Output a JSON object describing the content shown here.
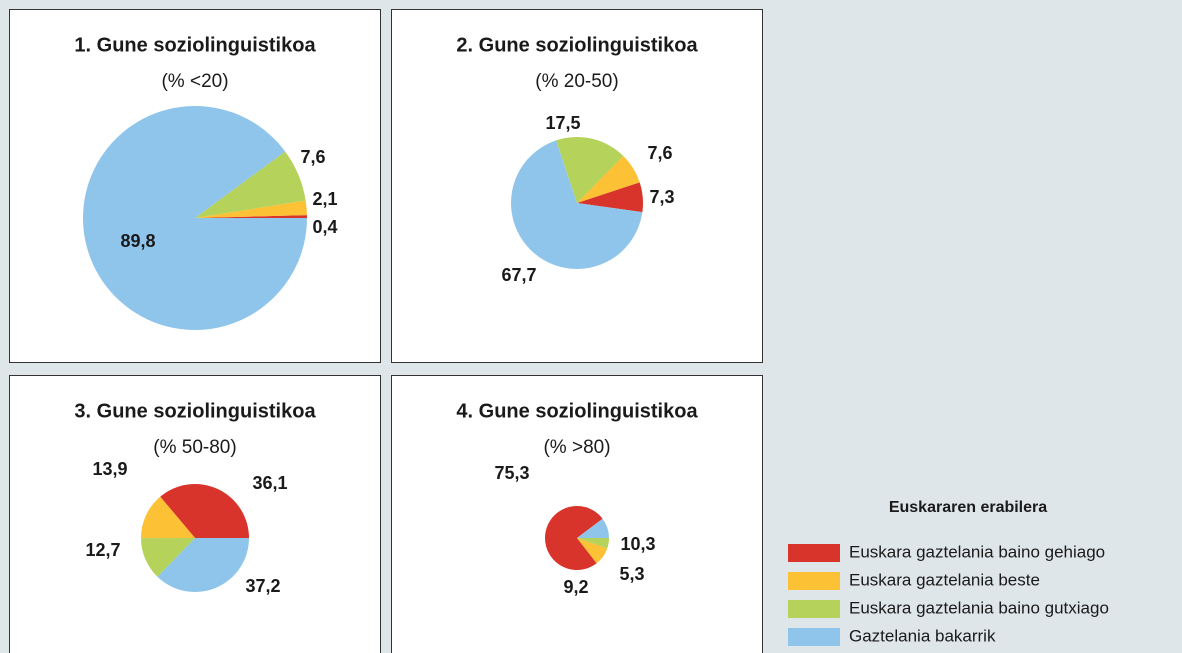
{
  "chart_data": [
    {
      "type": "pie",
      "title": "1. Gune soziolinguistikoa",
      "subtitle": "(% <20)",
      "values": [
        0.4,
        2.1,
        7.6,
        89.8
      ],
      "value_labels": [
        "0,4",
        "2,1",
        "7,6",
        "89,8"
      ]
    },
    {
      "type": "pie",
      "title": "2. Gune soziolinguistikoa",
      "subtitle": "(% 20-50)",
      "values": [
        7.3,
        7.6,
        17.5,
        67.7
      ],
      "value_labels": [
        "7,3",
        "7,6",
        "17,5",
        "67,7"
      ]
    },
    {
      "type": "pie",
      "title": "3. Gune soziolinguistikoa",
      "subtitle": "(% 50-80)",
      "values": [
        36.1,
        13.9,
        12.7,
        37.2
      ],
      "value_labels": [
        "36,1",
        "13,9",
        "12,7",
        "37,2"
      ]
    },
    {
      "type": "pie",
      "title": "4. Gune soziolinguistikoa",
      "subtitle": "(% >80)",
      "values": [
        75.3,
        9.2,
        5.3,
        10.3
      ],
      "value_labels": [
        "75,3",
        "9,2",
        "5,3",
        "10,3"
      ]
    }
  ],
  "legend": {
    "title": "Euskararen erabilera",
    "categories": [
      "Euskara gaztelania baino gehiago",
      "Euskara gaztelania beste",
      "Euskara gaztelania baino gutxiago",
      "Gaztelania bakarrik"
    ],
    "colors": [
      "#d9342b",
      "#fcc135",
      "#b5d25a",
      "#8fc5eb"
    ]
  }
}
